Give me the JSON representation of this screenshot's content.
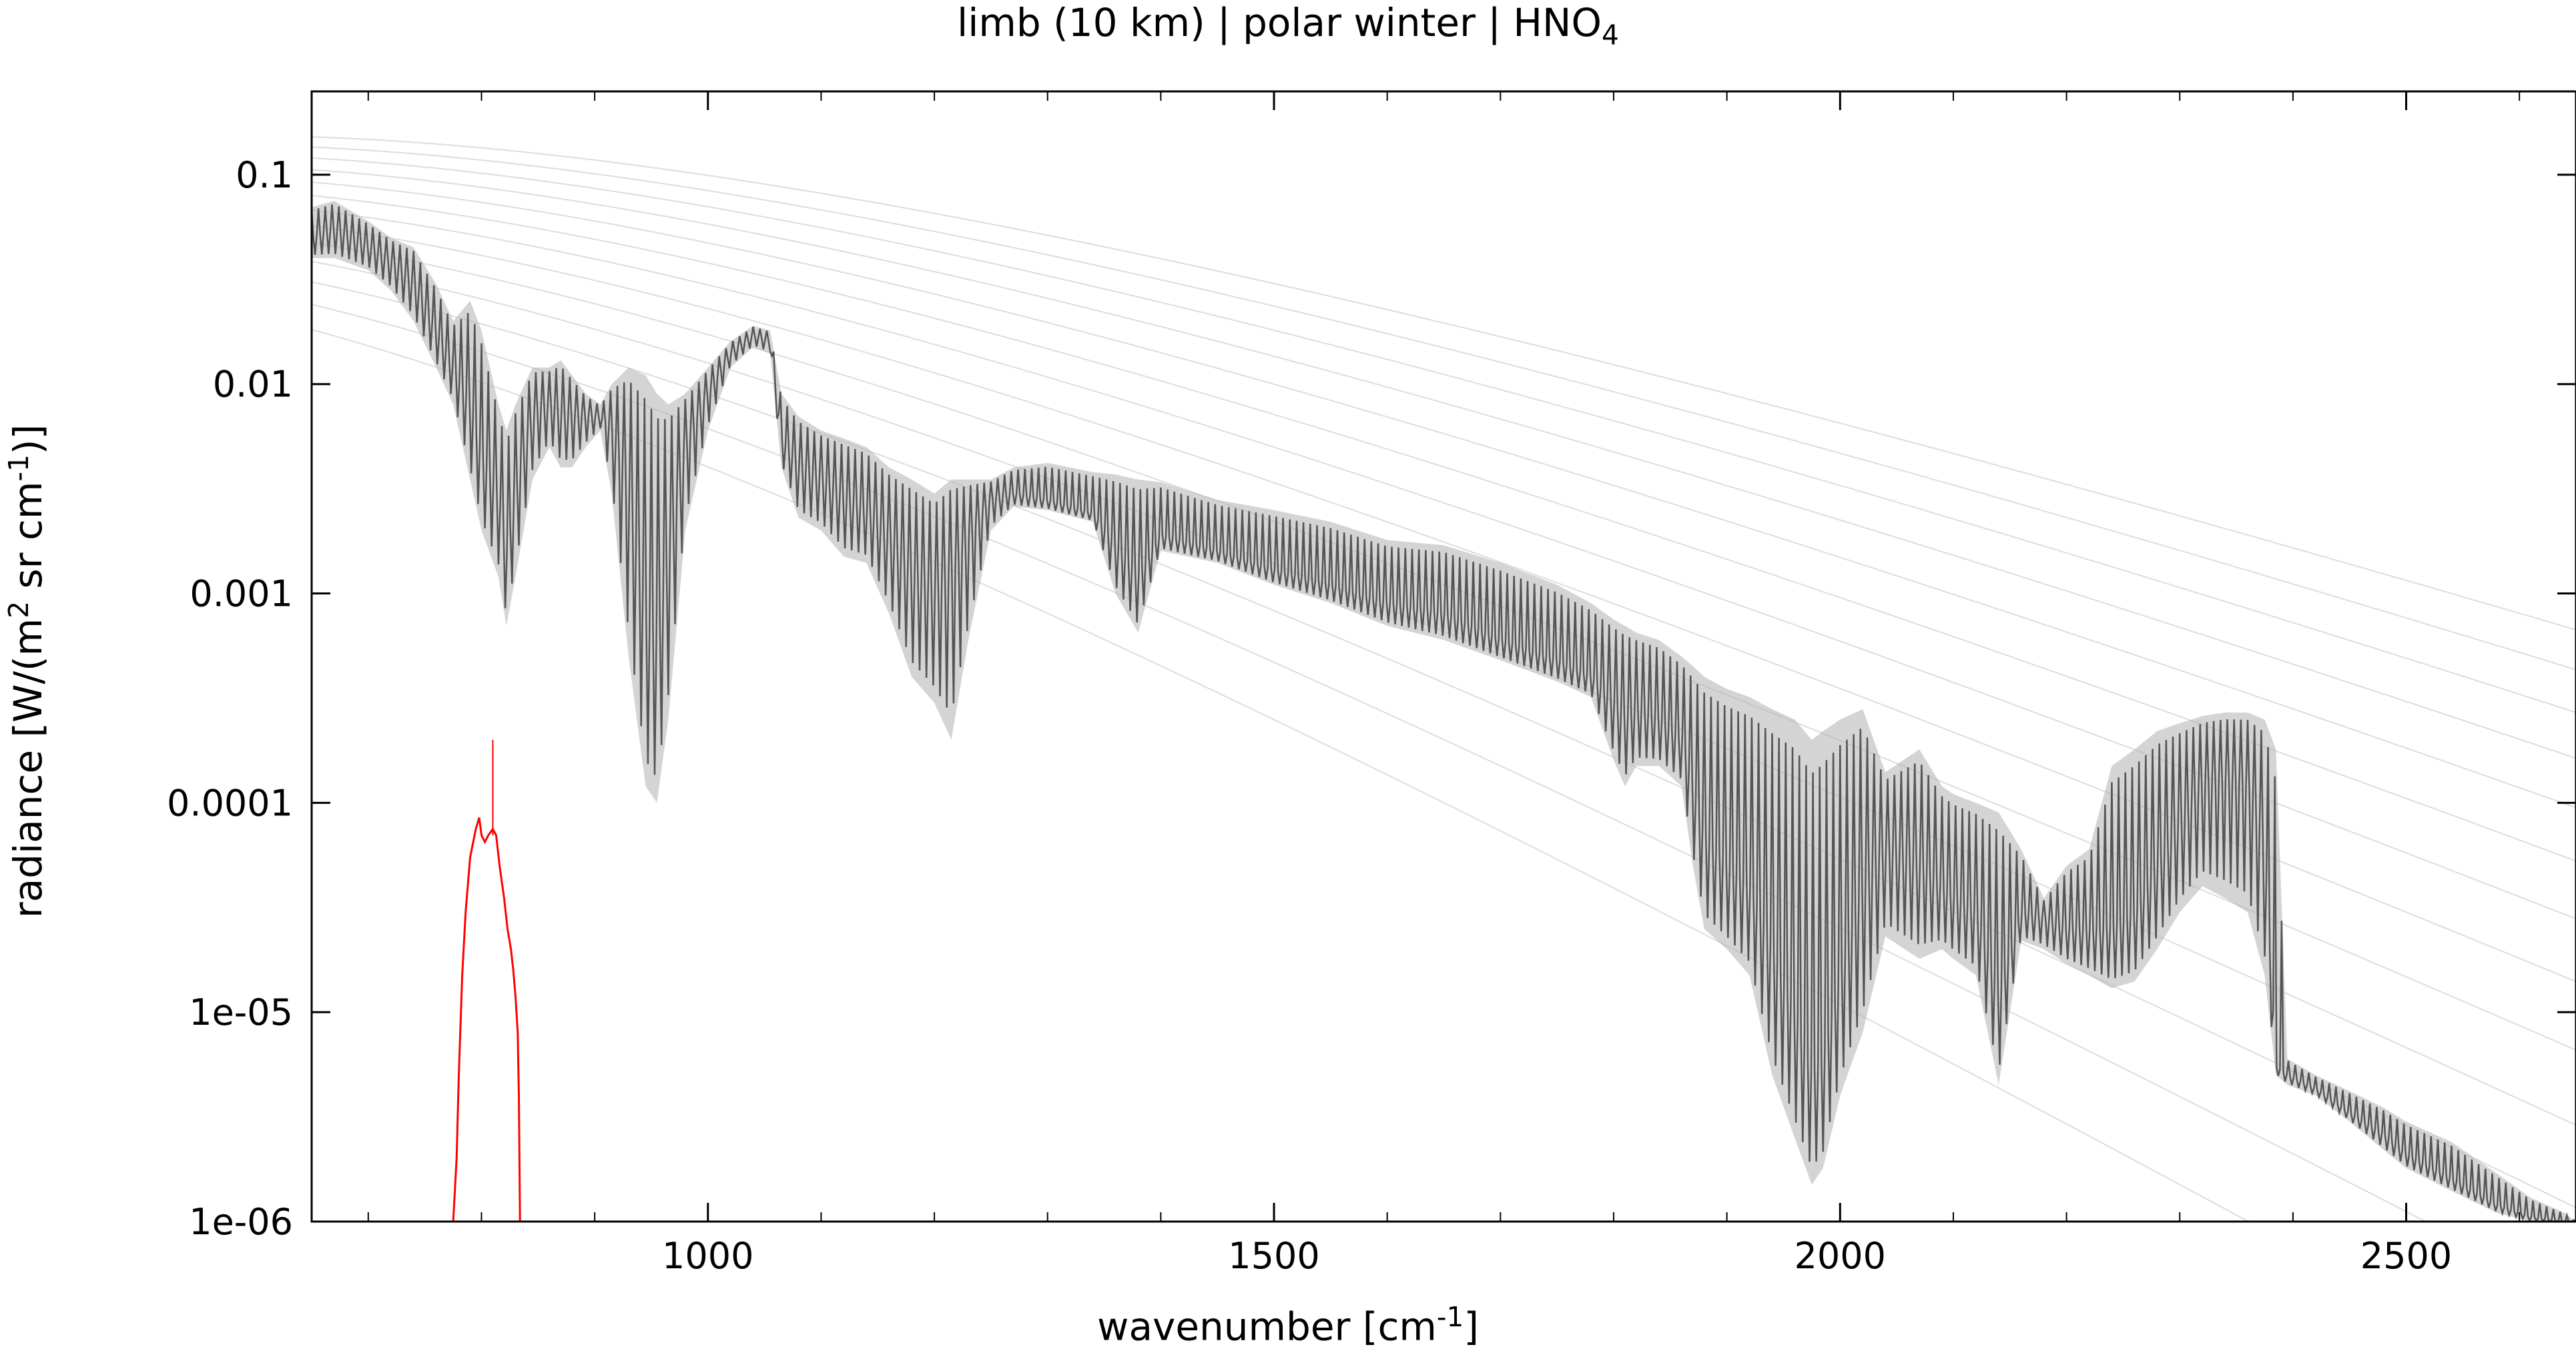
{
  "chart_data": {
    "type": "line",
    "title": {
      "main": "limb (10 km) | polar winter | HNO",
      "sub": "4"
    },
    "xlabel": {
      "pre": "wavenumber [cm",
      "sup": "-1",
      "post": "]"
    },
    "ylabel": {
      "pre1": "radiance [W/(m",
      "sup1": "2",
      "mid": " sr cm",
      "sup2": "-1",
      "post": ")]"
    },
    "xlim": [
      650,
      2650
    ],
    "ylim": [
      1e-06,
      0.25
    ],
    "yscale": "log",
    "grid": false,
    "x_ticks": [
      1000,
      1500,
      2000,
      2500
    ],
    "x_tick_labels": [
      "1000",
      "1500",
      "2000",
      "2500"
    ],
    "y_ticks": [
      1e-06,
      1e-05,
      0.0001,
      0.001,
      0.01,
      0.1
    ],
    "y_tick_labels": [
      "1e-06",
      "1e-05",
      "0.0001",
      "0.001",
      "0.01",
      "0.1"
    ],
    "colors": {
      "spectrum_main": "#555555",
      "spectrum_light": "#b0b0b0",
      "planck": "#dddddd",
      "hno4": "#ff0000"
    },
    "series": [
      {
        "role": "spectrum-envelope",
        "x": [
          650,
          670,
          700,
          720,
          740,
          760,
          775,
          790,
          800,
          815,
          822,
          830,
          845,
          860,
          870,
          880,
          892,
          905,
          915,
          930,
          945,
          955,
          965,
          980,
          1000,
          1020,
          1040,
          1055,
          1065,
          1080,
          1100,
          1120,
          1140,
          1160,
          1180,
          1200,
          1215,
          1230,
          1250,
          1270,
          1300,
          1340,
          1360,
          1380,
          1400,
          1450,
          1500,
          1550,
          1600,
          1650,
          1700,
          1750,
          1780,
          1800,
          1810,
          1820,
          1840,
          1860,
          1870,
          1880,
          1900,
          1920,
          1940,
          1960,
          1975,
          1985,
          2000,
          2020,
          2040,
          2070,
          2090,
          2100,
          2120,
          2140,
          2160,
          2180,
          2200,
          2220,
          2240,
          2260,
          2280,
          2300,
          2320,
          2340,
          2360,
          2375,
          2385,
          2395,
          2420,
          2450,
          2480,
          2500,
          2540,
          2580,
          2610,
          2640,
          2650
        ],
        "upper": [
          0.07,
          0.075,
          0.06,
          0.05,
          0.045,
          0.03,
          0.02,
          0.025,
          0.018,
          0.008,
          0.006,
          0.008,
          0.012,
          0.012,
          0.013,
          0.011,
          0.009,
          0.008,
          0.01,
          0.012,
          0.011,
          0.009,
          0.008,
          0.009,
          0.012,
          0.016,
          0.019,
          0.018,
          0.009,
          0.007,
          0.006,
          0.0055,
          0.005,
          0.004,
          0.0035,
          0.003,
          0.0035,
          0.0035,
          0.0035,
          0.004,
          0.0042,
          0.0038,
          0.0037,
          0.0035,
          0.0034,
          0.0028,
          0.0025,
          0.0022,
          0.0018,
          0.0017,
          0.0014,
          0.0011,
          0.0009,
          0.00075,
          0.0007,
          0.00065,
          0.0006,
          0.0005,
          0.00045,
          0.0004,
          0.00035,
          0.00032,
          0.00028,
          0.00025,
          0.0002,
          0.00022,
          0.00025,
          0.00028,
          0.00014,
          0.00018,
          0.00012,
          0.00011,
          0.0001,
          9e-05,
          6e-05,
          3.5e-05,
          5e-05,
          6e-05,
          0.00015,
          0.00018,
          0.00022,
          0.00024,
          0.00026,
          0.00027,
          0.00027,
          0.00025,
          0.00018,
          6e-06,
          5e-06,
          4.2e-06,
          3.5e-06,
          3e-06,
          2.4e-06,
          1.7e-06,
          1.3e-06,
          1.1e-06,
          1e-06
        ],
        "lower": [
          0.04,
          0.04,
          0.035,
          0.028,
          0.02,
          0.012,
          0.008,
          0.0035,
          0.002,
          0.0012,
          0.0007,
          0.0012,
          0.0035,
          0.005,
          0.004,
          0.004,
          0.005,
          0.006,
          0.003,
          0.0005,
          0.00012,
          0.0001,
          0.00025,
          0.002,
          0.006,
          0.012,
          0.015,
          0.014,
          0.004,
          0.0023,
          0.002,
          0.0015,
          0.0014,
          0.0008,
          0.0004,
          0.0003,
          0.0002,
          0.0006,
          0.002,
          0.0026,
          0.0025,
          0.0022,
          0.001,
          0.00065,
          0.0016,
          0.0014,
          0.0011,
          0.0009,
          0.0007,
          0.0006,
          0.00048,
          0.00038,
          0.00032,
          0.00016,
          0.00012,
          0.00015,
          0.00015,
          0.00012,
          5e-05,
          2.5e-05,
          2e-05,
          1.5e-05,
          5e-06,
          2.5e-06,
          1.5e-06,
          1.8e-06,
          4e-06,
          8e-06,
          2.3e-05,
          1.8e-05,
          2e-05,
          1.8e-05,
          1.5e-05,
          4.5e-06,
          2.2e-05,
          2e-05,
          1.7e-05,
          1.5e-05,
          1.3e-05,
          1.4e-05,
          2e-05,
          3e-05,
          4e-05,
          3.5e-05,
          3e-05,
          1.5e-05,
          5e-06,
          4.5e-06,
          4e-06,
          3e-06,
          2.2e-06,
          1.8e-06,
          1.4e-06,
          1.1e-06,
          1e-06,
          1e-06,
          1e-06
        ],
        "mid": [
          0.05,
          0.055,
          0.045,
          0.038,
          0.03,
          0.018,
          0.012,
          0.008,
          0.0045,
          0.003,
          0.0015,
          0.003,
          0.007,
          0.008,
          0.007,
          0.007,
          0.007,
          0.007,
          0.006,
          0.003,
          0.0008,
          0.0006,
          0.0015,
          0.005,
          0.009,
          0.014,
          0.017,
          0.016,
          0.0055,
          0.004,
          0.0035,
          0.0028,
          0.0025,
          0.0018,
          0.0012,
          0.001,
          0.0012,
          0.0018,
          0.0028,
          0.003,
          0.0028,
          0.0024,
          0.0017,
          0.0012,
          0.0019,
          0.0016,
          0.0013,
          0.0011,
          0.0009,
          0.0008,
          0.0006,
          0.00048,
          0.0004,
          0.0003,
          0.00025,
          0.00028,
          0.00025,
          0.0002,
          0.00012,
          7e-05,
          5e-05,
          4e-05,
          2e-05,
          1e-05,
          5e-06,
          6e-06,
          1.5e-05,
          4e-05,
          6e-05,
          5e-05,
          4e-05,
          3.5e-05,
          3e-05,
          1.2e-05,
          3e-05,
          2.8e-05,
          2.5e-05,
          2.5e-05,
          2.5e-05,
          3e-05,
          5e-05,
          8e-05,
          0.00012,
          0.00013,
          0.00012,
          6e-05,
          5.5e-06,
          5e-06,
          4.3e-06,
          3.3e-06,
          2.6e-06,
          2.1e-06,
          1.6e-06,
          1.2e-06,
          1.05e-06,
          1e-06,
          1e-06
        ]
      },
      {
        "role": "HNO4-contribution",
        "x": [
          775,
          778,
          780,
          783,
          786,
          790,
          795,
          798,
          800,
          803,
          806,
          810,
          813,
          816,
          820,
          823,
          826,
          828,
          830,
          832,
          833,
          834
        ],
        "y": [
          1e-06,
          2e-06,
          5e-06,
          1.5e-05,
          3e-05,
          5.5e-05,
          7.5e-05,
          8.5e-05,
          7e-05,
          6.5e-05,
          7e-05,
          7.5e-05,
          7e-05,
          5e-05,
          3.5e-05,
          2.5e-05,
          2e-05,
          1.6e-05,
          1.2e-05,
          8e-06,
          4e-06,
          1e-06
        ]
      }
    ],
    "planck_curves": {
      "temperatures_K": [
        180,
        190,
        200,
        210,
        220,
        230,
        240,
        250,
        260,
        270,
        280,
        290,
        300
      ],
      "x_range": [
        650,
        2650
      ]
    }
  }
}
